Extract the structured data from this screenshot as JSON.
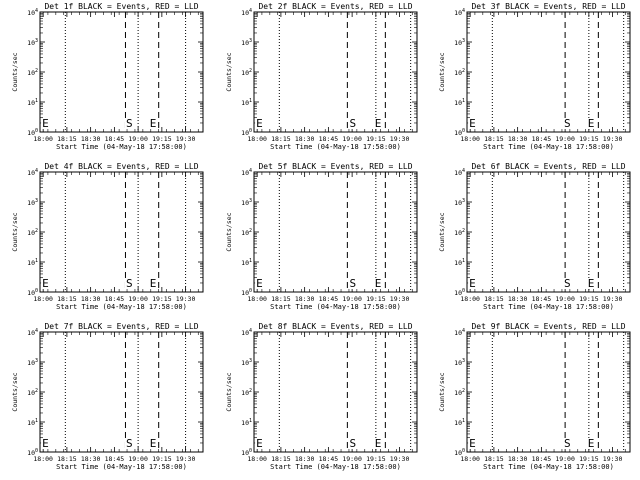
{
  "start_time_label": "Start Time (04-May-18 17:58:00)",
  "ylabel": "Counts/sec",
  "x_ticks": [
    "18:00",
    "18:15",
    "18:30",
    "18:45",
    "19:00",
    "19:15",
    "19:30"
  ],
  "x_tick_values_min": [
    2,
    17,
    32,
    47,
    62,
    77,
    92
  ],
  "y_tick_labels": [
    {
      "mant": "10",
      "exp": "0"
    },
    {
      "mant": "10",
      "exp": "1"
    },
    {
      "mant": "10",
      "exp": "2"
    },
    {
      "mant": "10",
      "exp": "3"
    },
    {
      "mant": "10",
      "exp": "4"
    }
  ],
  "colors": {
    "events": "#000000",
    "lld": "#ff0000"
  },
  "chart_data": [
    {
      "type": "line",
      "title": "Det 1f BLACK = Events, RED = LLD",
      "xlabel": "Start Time (04-May-18 17:58:00)",
      "ylabel": "Counts/sec",
      "xlim_min": [
        0,
        103
      ],
      "ylim": [
        1,
        10000
      ],
      "yscale": "log",
      "series": [],
      "dotted_lines_min": [
        16,
        62,
        92
      ],
      "dashed_lines_min": [
        54,
        75
      ],
      "labels": [
        {
          "text": "E",
          "x_min": 1
        },
        {
          "text": "S",
          "x_min": 54
        },
        {
          "text": "E",
          "x_min": 69
        }
      ]
    },
    {
      "type": "line",
      "title": "Det 2f BLACK = Events, RED = LLD",
      "xlabel": "Start Time (04-May-18 17:58:00)",
      "ylabel": "Counts/sec",
      "xlim_min": [
        0,
        103
      ],
      "ylim": [
        1,
        10000
      ],
      "yscale": "log",
      "series": [],
      "dotted_lines_min": [
        16,
        77,
        99
      ],
      "dashed_lines_min": [
        59,
        83
      ],
      "labels": [
        {
          "text": "E",
          "x_min": 1
        },
        {
          "text": "S",
          "x_min": 60
        },
        {
          "text": "E",
          "x_min": 76
        }
      ]
    },
    {
      "type": "line",
      "title": "Det 3f BLACK = Events, RED = LLD",
      "xlabel": "Start Time (04-May-18 17:58:00)",
      "ylabel": "Counts/sec",
      "xlim_min": [
        0,
        103
      ],
      "ylim": [
        1,
        10000
      ],
      "yscale": "log",
      "series": [],
      "dotted_lines_min": [
        16,
        77,
        99
      ],
      "dashed_lines_min": [
        62,
        83
      ],
      "labels": [
        {
          "text": "E",
          "x_min": 1
        },
        {
          "text": "S",
          "x_min": 61
        },
        {
          "text": "E",
          "x_min": 76
        }
      ]
    },
    {
      "type": "line",
      "title": "Det 4f BLACK = Events, RED = LLD",
      "xlabel": "Start Time (04-May-18 17:58:00)",
      "ylabel": "Counts/sec",
      "xlim_min": [
        0,
        103
      ],
      "ylim": [
        1,
        10000
      ],
      "yscale": "log",
      "series": [],
      "dotted_lines_min": [
        16,
        62,
        92
      ],
      "dashed_lines_min": [
        54,
        75
      ],
      "labels": [
        {
          "text": "E",
          "x_min": 1
        },
        {
          "text": "S",
          "x_min": 54
        },
        {
          "text": "E",
          "x_min": 69
        }
      ]
    },
    {
      "type": "line",
      "title": "Det 5f BLACK = Events, RED = LLD",
      "xlabel": "Start Time (04-May-18 17:58:00)",
      "ylabel": "Counts/sec",
      "xlim_min": [
        0,
        103
      ],
      "ylim": [
        1,
        10000
      ],
      "yscale": "log",
      "series": [],
      "dotted_lines_min": [
        16,
        77,
        99
      ],
      "dashed_lines_min": [
        59,
        83
      ],
      "labels": [
        {
          "text": "E",
          "x_min": 1
        },
        {
          "text": "S",
          "x_min": 60
        },
        {
          "text": "E",
          "x_min": 76
        }
      ]
    },
    {
      "type": "line",
      "title": "Det 6f BLACK = Events, RED = LLD",
      "xlabel": "Start Time (04-May-18 17:58:00)",
      "ylabel": "Counts/sec",
      "xlim_min": [
        0,
        103
      ],
      "ylim": [
        1,
        10000
      ],
      "yscale": "log",
      "series": [],
      "dotted_lines_min": [
        16,
        77,
        99
      ],
      "dashed_lines_min": [
        62,
        83
      ],
      "labels": [
        {
          "text": "E",
          "x_min": 1
        },
        {
          "text": "S",
          "x_min": 61
        },
        {
          "text": "E",
          "x_min": 76
        }
      ]
    },
    {
      "type": "line",
      "title": "Det 7f BLACK = Events, RED = LLD",
      "xlabel": "Start Time (04-May-18 17:58:00)",
      "ylabel": "Counts/sec",
      "xlim_min": [
        0,
        103
      ],
      "ylim": [
        1,
        10000
      ],
      "yscale": "log",
      "series": [],
      "dotted_lines_min": [
        16,
        62,
        92
      ],
      "dashed_lines_min": [
        54,
        75
      ],
      "labels": [
        {
          "text": "E",
          "x_min": 1
        },
        {
          "text": "S",
          "x_min": 54
        },
        {
          "text": "E",
          "x_min": 69
        }
      ]
    },
    {
      "type": "line",
      "title": "Det 8f BLACK = Events, RED = LLD",
      "xlabel": "Start Time (04-May-18 17:58:00)",
      "ylabel": "Counts/sec",
      "xlim_min": [
        0,
        103
      ],
      "ylim": [
        1,
        10000
      ],
      "yscale": "log",
      "series": [],
      "dotted_lines_min": [
        16,
        77,
        99
      ],
      "dashed_lines_min": [
        59,
        83
      ],
      "labels": [
        {
          "text": "E",
          "x_min": 1
        },
        {
          "text": "S",
          "x_min": 60
        },
        {
          "text": "E",
          "x_min": 76
        }
      ]
    },
    {
      "type": "line",
      "title": "Det 9f BLACK = Events, RED = LLD",
      "xlabel": "Start Time (04-May-18 17:58:00)",
      "ylabel": "Counts/sec",
      "xlim_min": [
        0,
        103
      ],
      "ylim": [
        1,
        10000
      ],
      "yscale": "log",
      "series": [],
      "dotted_lines_min": [
        16,
        77,
        99
      ],
      "dashed_lines_min": [
        62,
        83
      ],
      "labels": [
        {
          "text": "E",
          "x_min": 1
        },
        {
          "text": "S",
          "x_min": 61
        },
        {
          "text": "E",
          "x_min": 76
        }
      ]
    }
  ]
}
